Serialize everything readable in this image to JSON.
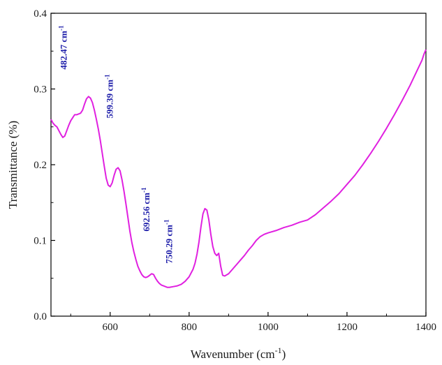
{
  "chart_data": {
    "type": "line",
    "xlabel": "Wavenumber (cm-1)",
    "ylabel": "Transmittance (%)",
    "xlim": [
      450,
      1400
    ],
    "ylim": [
      0.0,
      0.4
    ],
    "x_ticks": [
      "600",
      "800",
      "1000",
      "1200",
      "1400"
    ],
    "y_ticks": [
      "0.0",
      "0.1",
      "0.2",
      "0.3",
      "0.4"
    ],
    "grid": false,
    "legend": "none",
    "line_color": "#e020e0",
    "annotation_color": "#1a1aa8",
    "series": [
      {
        "x": [
          450,
          455,
          460,
          465,
          470,
          475,
          480,
          485,
          490,
          495,
          500,
          505,
          510,
          515,
          520,
          525,
          530,
          535,
          540,
          545,
          550,
          555,
          560,
          565,
          570,
          575,
          580,
          585,
          590,
          595,
          600,
          605,
          610,
          615,
          620,
          625,
          630,
          635,
          640,
          645,
          650,
          655,
          660,
          665,
          670,
          675,
          680,
          685,
          690,
          695,
          700,
          705,
          710,
          715,
          720,
          725,
          730,
          735,
          740,
          745,
          750,
          760,
          770,
          780,
          790,
          800,
          810,
          815,
          820,
          825,
          830,
          835,
          840,
          845,
          850,
          855,
          860,
          865,
          870,
          875,
          880,
          885,
          890,
          900,
          910,
          920,
          930,
          940,
          950,
          960,
          970,
          980,
          990,
          1000,
          1020,
          1040,
          1060,
          1080,
          1100,
          1120,
          1140,
          1160,
          1180,
          1200,
          1220,
          1240,
          1260,
          1280,
          1300,
          1320,
          1340,
          1360,
          1380,
          1390,
          1395,
          1400
        ],
        "y": [
          0.26,
          0.255,
          0.252,
          0.25,
          0.245,
          0.24,
          0.236,
          0.238,
          0.245,
          0.252,
          0.258,
          0.262,
          0.266,
          0.266,
          0.267,
          0.268,
          0.272,
          0.28,
          0.287,
          0.29,
          0.288,
          0.282,
          0.272,
          0.26,
          0.247,
          0.232,
          0.215,
          0.198,
          0.182,
          0.173,
          0.171,
          0.176,
          0.186,
          0.194,
          0.196,
          0.192,
          0.18,
          0.165,
          0.148,
          0.13,
          0.112,
          0.097,
          0.085,
          0.075,
          0.066,
          0.06,
          0.055,
          0.052,
          0.051,
          0.052,
          0.054,
          0.056,
          0.055,
          0.05,
          0.046,
          0.043,
          0.041,
          0.04,
          0.039,
          0.038,
          0.038,
          0.039,
          0.04,
          0.042,
          0.046,
          0.052,
          0.062,
          0.07,
          0.082,
          0.098,
          0.118,
          0.135,
          0.142,
          0.14,
          0.127,
          0.108,
          0.092,
          0.083,
          0.08,
          0.083,
          0.066,
          0.054,
          0.053,
          0.056,
          0.062,
          0.068,
          0.074,
          0.08,
          0.087,
          0.093,
          0.1,
          0.105,
          0.108,
          0.11,
          0.113,
          0.117,
          0.12,
          0.124,
          0.127,
          0.134,
          0.143,
          0.152,
          0.162,
          0.174,
          0.186,
          0.2,
          0.215,
          0.231,
          0.248,
          0.266,
          0.285,
          0.305,
          0.327,
          0.338,
          0.346,
          0.352
        ]
      }
    ],
    "annotations": [
      {
        "text": "482.47 cm-1",
        "x": 482.47
      },
      {
        "text": "599.39 cm-1",
        "x": 599.39
      },
      {
        "text": "692.56 cm-1",
        "x": 692.56
      },
      {
        "text": "750.29 cm-1",
        "x": 750.29
      }
    ]
  }
}
